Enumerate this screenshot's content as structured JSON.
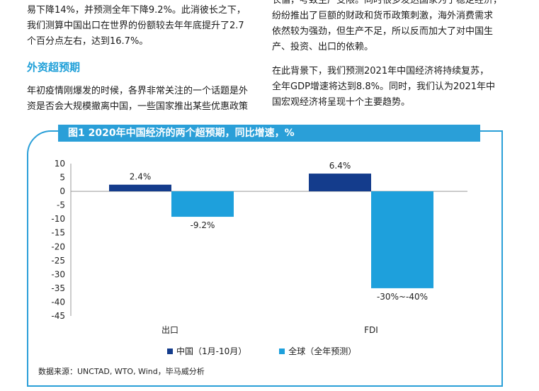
{
  "left_column": {
    "para1_lines": [
      "易下降14%，并预测全年下降9.2%。此消彼长之下，",
      "我们测算中国出口在世界的份额较去年年底提升了2.7",
      "个百分点左右，达到16.7%。"
    ],
    "heading": "外资超预期",
    "para2_lines": [
      "年初疫情刚爆发的时候，各界非常关注的一个话题是外",
      "资是否会大规模撤离中国，一些国家推出某些优惠政策"
    ]
  },
  "right_column": {
    "para1_lines": [
      "长循，考致生产受限。同时很多发达国家为了稳定经济，",
      "纷纷推出了巨额的财政和货币政策刺激，海外消费需求",
      "依然较为强劲，但生产不足，所以反而加大了对中国生",
      "产、投资、出口的依赖。"
    ],
    "para2_lines": [
      "在此背景下，我们预测2021年中国经济将持续复苏，",
      "全年GDP增速将达到8.8%。同时，我们认为2021年中",
      "国宏观经济将呈现十个主要趋势。"
    ]
  },
  "figure": {
    "title": "图1  2020年中国经济的两个超预期，同比增速，%",
    "source": "数据来源：UNCTAD, WTO, Wind，毕马威分析"
  },
  "colors": {
    "accent": "#2a9fd8",
    "series_china": "#143c8c",
    "series_global": "#1ea0dc"
  },
  "chart_data": {
    "type": "bar",
    "categories": [
      "出口",
      "FDI"
    ],
    "series": [
      {
        "name": "中国（1月-10月）",
        "values": [
          2.4,
          6.4
        ],
        "labels": [
          "2.4%",
          "6.4%"
        ]
      },
      {
        "name": "全球（全年预测）",
        "values": [
          -9.2,
          -35
        ],
        "labels": [
          "-9.2%",
          "-30%~-40%"
        ]
      }
    ],
    "yticks": [
      10,
      5,
      0,
      -5,
      -10,
      -15,
      -20,
      -25,
      -30,
      -35,
      -40,
      -45
    ],
    "ylim": [
      -45,
      10
    ],
    "legend_position": "bottom"
  }
}
